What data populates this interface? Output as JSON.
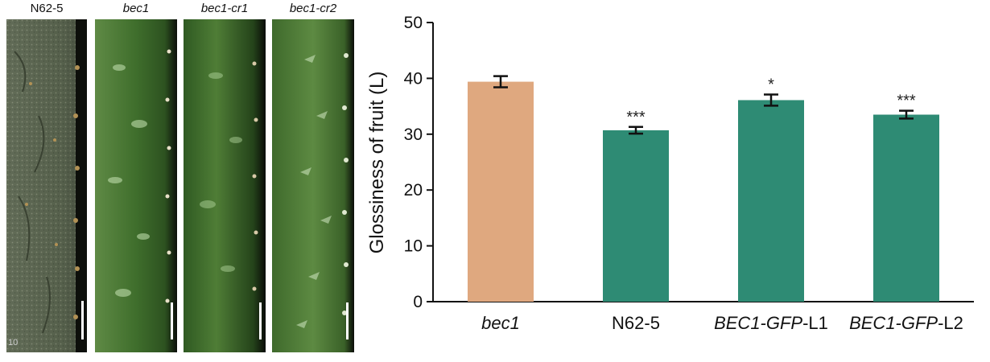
{
  "panels": [
    {
      "label": "N62-5",
      "italic": false
    },
    {
      "label": "bec1",
      "italic": true
    },
    {
      "label": "bec1-cr1",
      "italic": true
    },
    {
      "label": "bec1-cr2",
      "italic": true
    }
  ],
  "photo_corner_mark": "10",
  "chart_data": {
    "type": "bar",
    "categories": [
      "bec1",
      "N62-5",
      "BEC1-GFP-L1",
      "BEC1-GFP-L2"
    ],
    "category_parts": [
      [
        {
          "text": "bec1",
          "italic": true
        }
      ],
      [
        {
          "text": "N62-5",
          "italic": false
        }
      ],
      [
        {
          "text": "BEC1-GFP",
          "italic": true
        },
        {
          "text": "-L1",
          "italic": false
        }
      ],
      [
        {
          "text": "BEC1-GFP",
          "italic": true
        },
        {
          "text": "-L2",
          "italic": false
        }
      ]
    ],
    "values": [
      39.4,
      30.7,
      36.1,
      33.5
    ],
    "errors": [
      1.0,
      0.6,
      1.0,
      0.7
    ],
    "significance": [
      "",
      "***",
      "*",
      "***"
    ],
    "colors": [
      "#dfa87f",
      "#2e8b74",
      "#2e8b74",
      "#2e8b74"
    ],
    "ylabel": "Glossiness of fruit (L)",
    "xlabel": "",
    "ylim": [
      0,
      50
    ],
    "yticks": [
      0,
      10,
      20,
      30,
      40,
      50
    ]
  }
}
